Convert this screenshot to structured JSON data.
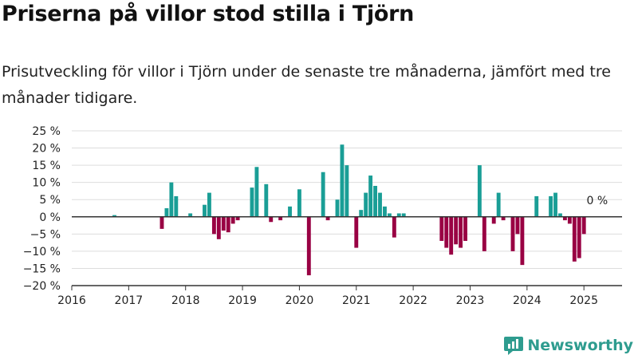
{
  "title": "Priserna på villor stod stilla i Tjörn",
  "subtitle": "Prisutveckling för villor i Tjörn under de senaste tre månaderna, jämfört med tre månader tidigare.",
  "brand": "Newsworthy",
  "colors": {
    "positive": "#1a9e96",
    "negative": "#990043",
    "grid": "#dddddd",
    "axis": "#333333",
    "brand": "#2e9c8f"
  },
  "chart_data": {
    "type": "bar",
    "title": "Priserna på villor stod stilla i Tjörn",
    "ylim": [
      -20,
      25
    ],
    "xlim": [
      2016,
      2025.67
    ],
    "y_ticks": [
      -20,
      -15,
      -10,
      -5,
      0,
      5,
      10,
      15,
      20,
      25
    ],
    "y_tick_labels": [
      "−20 %",
      "−15 %",
      "−10 %",
      "−5 %",
      "0 %",
      "5 %",
      "10 %",
      "15 %",
      "20 %",
      "25 %"
    ],
    "x_ticks": [
      2016,
      2017,
      2018,
      2019,
      2020,
      2021,
      2022,
      2023,
      2024,
      2025
    ],
    "x_tick_labels": [
      "2016",
      "2017",
      "2018",
      "2019",
      "2020",
      "2021",
      "2022",
      "2023",
      "2024",
      "2025"
    ],
    "grid": true,
    "annotation": {
      "text": "0 %",
      "x": 2025.0,
      "y": 0
    },
    "series": [
      {
        "x": [
          "2016-10",
          "2017-08",
          "2017-09",
          "2017-10",
          "2017-11",
          "2018-02",
          "2018-05",
          "2018-06",
          "2018-07",
          "2018-08",
          "2018-09",
          "2018-10",
          "2018-11",
          "2018-12",
          "2019-03",
          "2019-04",
          "2019-06",
          "2019-07",
          "2019-09",
          "2019-11",
          "2020-01",
          "2020-03",
          "2020-06",
          "2020-07",
          "2020-09",
          "2020-10",
          "2020-11",
          "2021-01",
          "2021-02",
          "2021-03",
          "2021-04",
          "2021-05",
          "2021-06",
          "2021-07",
          "2021-08",
          "2021-09",
          "2021-10",
          "2021-11",
          "2022-07",
          "2022-08",
          "2022-09",
          "2022-10",
          "2022-11",
          "2022-12",
          "2023-03",
          "2023-04",
          "2023-06",
          "2023-07",
          "2023-08",
          "2023-10",
          "2023-11",
          "2023-12",
          "2024-03",
          "2024-06",
          "2024-07",
          "2024-08",
          "2024-09",
          "2024-10",
          "2024-11",
          "2024-12",
          "2025-01"
        ],
        "values": [
          0.5,
          -3.5,
          2.5,
          10,
          6,
          1,
          3.5,
          7,
          -5,
          -6.5,
          -4,
          -4.5,
          -2,
          -1,
          8.5,
          14.5,
          9.5,
          -1.5,
          -1,
          3,
          8,
          -17,
          13,
          -1,
          5,
          21,
          15,
          -9,
          2,
          7,
          12,
          9,
          7,
          3,
          1,
          -6,
          1,
          1,
          -7,
          -9,
          -11,
          -8,
          -9,
          -7,
          15,
          -10,
          -2,
          7,
          -1,
          -10,
          -5,
          -14,
          6,
          6,
          7,
          1,
          -1,
          -2,
          -13,
          -12,
          -5
        ]
      }
    ]
  }
}
